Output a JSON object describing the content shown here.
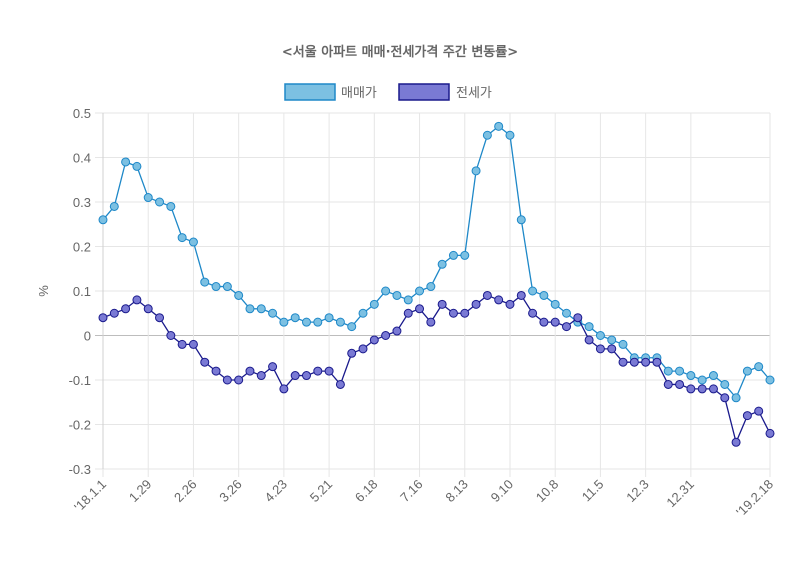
{
  "chart_data": {
    "type": "line",
    "title": "<서울 아파트 매매·전세가격 주간 변동률>",
    "xlabel": "",
    "ylabel": "%",
    "ylim": [
      -0.3,
      0.5
    ],
    "yticks": [
      "0.5",
      "0.4",
      "0.3",
      "0.2",
      "0.1",
      "0",
      "-0.1",
      "-0.2",
      "-0.3"
    ],
    "ytick_values": [
      0.5,
      0.4,
      0.3,
      0.2,
      0.1,
      0,
      -0.1,
      -0.2,
      -0.3
    ],
    "grid": true,
    "legend_position": "top-center",
    "x_tick_labels": [
      {
        "index": 0,
        "label": "'18.1.1"
      },
      {
        "index": 4,
        "label": "1.29"
      },
      {
        "index": 8,
        "label": "2.26"
      },
      {
        "index": 12,
        "label": "3.26"
      },
      {
        "index": 16,
        "label": "4.23"
      },
      {
        "index": 20,
        "label": "5.21"
      },
      {
        "index": 24,
        "label": "6.18"
      },
      {
        "index": 28,
        "label": "7.16"
      },
      {
        "index": 32,
        "label": "8.13"
      },
      {
        "index": 36,
        "label": "9.10"
      },
      {
        "index": 40,
        "label": "10.8"
      },
      {
        "index": 44,
        "label": "11.5"
      },
      {
        "index": 48,
        "label": "12.3"
      },
      {
        "index": 52,
        "label": "12.31"
      },
      {
        "index": 59,
        "label": "'19.2.18"
      }
    ],
    "series": [
      {
        "name": "매매가",
        "color": "#1E88C8",
        "fill": "#7CC0E2",
        "values": [
          0.26,
          0.29,
          0.39,
          0.38,
          0.31,
          0.3,
          0.29,
          0.22,
          0.21,
          0.12,
          0.11,
          0.11,
          0.09,
          0.06,
          0.06,
          0.05,
          0.03,
          0.04,
          0.03,
          0.03,
          0.04,
          0.03,
          0.02,
          0.05,
          0.07,
          0.1,
          0.09,
          0.08,
          0.1,
          0.11,
          0.16,
          0.18,
          0.18,
          0.37,
          0.45,
          0.47,
          0.45,
          0.26,
          0.1,
          0.09,
          0.07,
          0.05,
          0.03,
          0.02,
          0.0,
          -0.01,
          -0.02,
          -0.05,
          -0.05,
          -0.05,
          -0.08,
          -0.08,
          -0.09,
          -0.1,
          -0.09,
          -0.11,
          -0.14,
          -0.08,
          -0.07,
          -0.1
        ]
      },
      {
        "name": "전세가",
        "color": "#1A1A8C",
        "fill": "#7A7AD4",
        "values": [
          0.04,
          0.05,
          0.06,
          0.08,
          0.06,
          0.04,
          0.0,
          -0.02,
          -0.02,
          -0.06,
          -0.08,
          -0.1,
          -0.1,
          -0.08,
          -0.09,
          -0.07,
          -0.12,
          -0.09,
          -0.09,
          -0.08,
          -0.08,
          -0.11,
          -0.04,
          -0.03,
          -0.01,
          0.0,
          0.01,
          0.05,
          0.06,
          0.03,
          0.07,
          0.05,
          0.05,
          0.07,
          0.09,
          0.08,
          0.07,
          0.09,
          0.05,
          0.03,
          0.03,
          0.02,
          0.04,
          -0.01,
          -0.03,
          -0.03,
          -0.06,
          -0.06,
          -0.06,
          -0.06,
          -0.11,
          -0.11,
          -0.12,
          -0.12,
          -0.12,
          -0.14,
          -0.24,
          -0.18,
          -0.17,
          -0.22
        ]
      }
    ]
  }
}
